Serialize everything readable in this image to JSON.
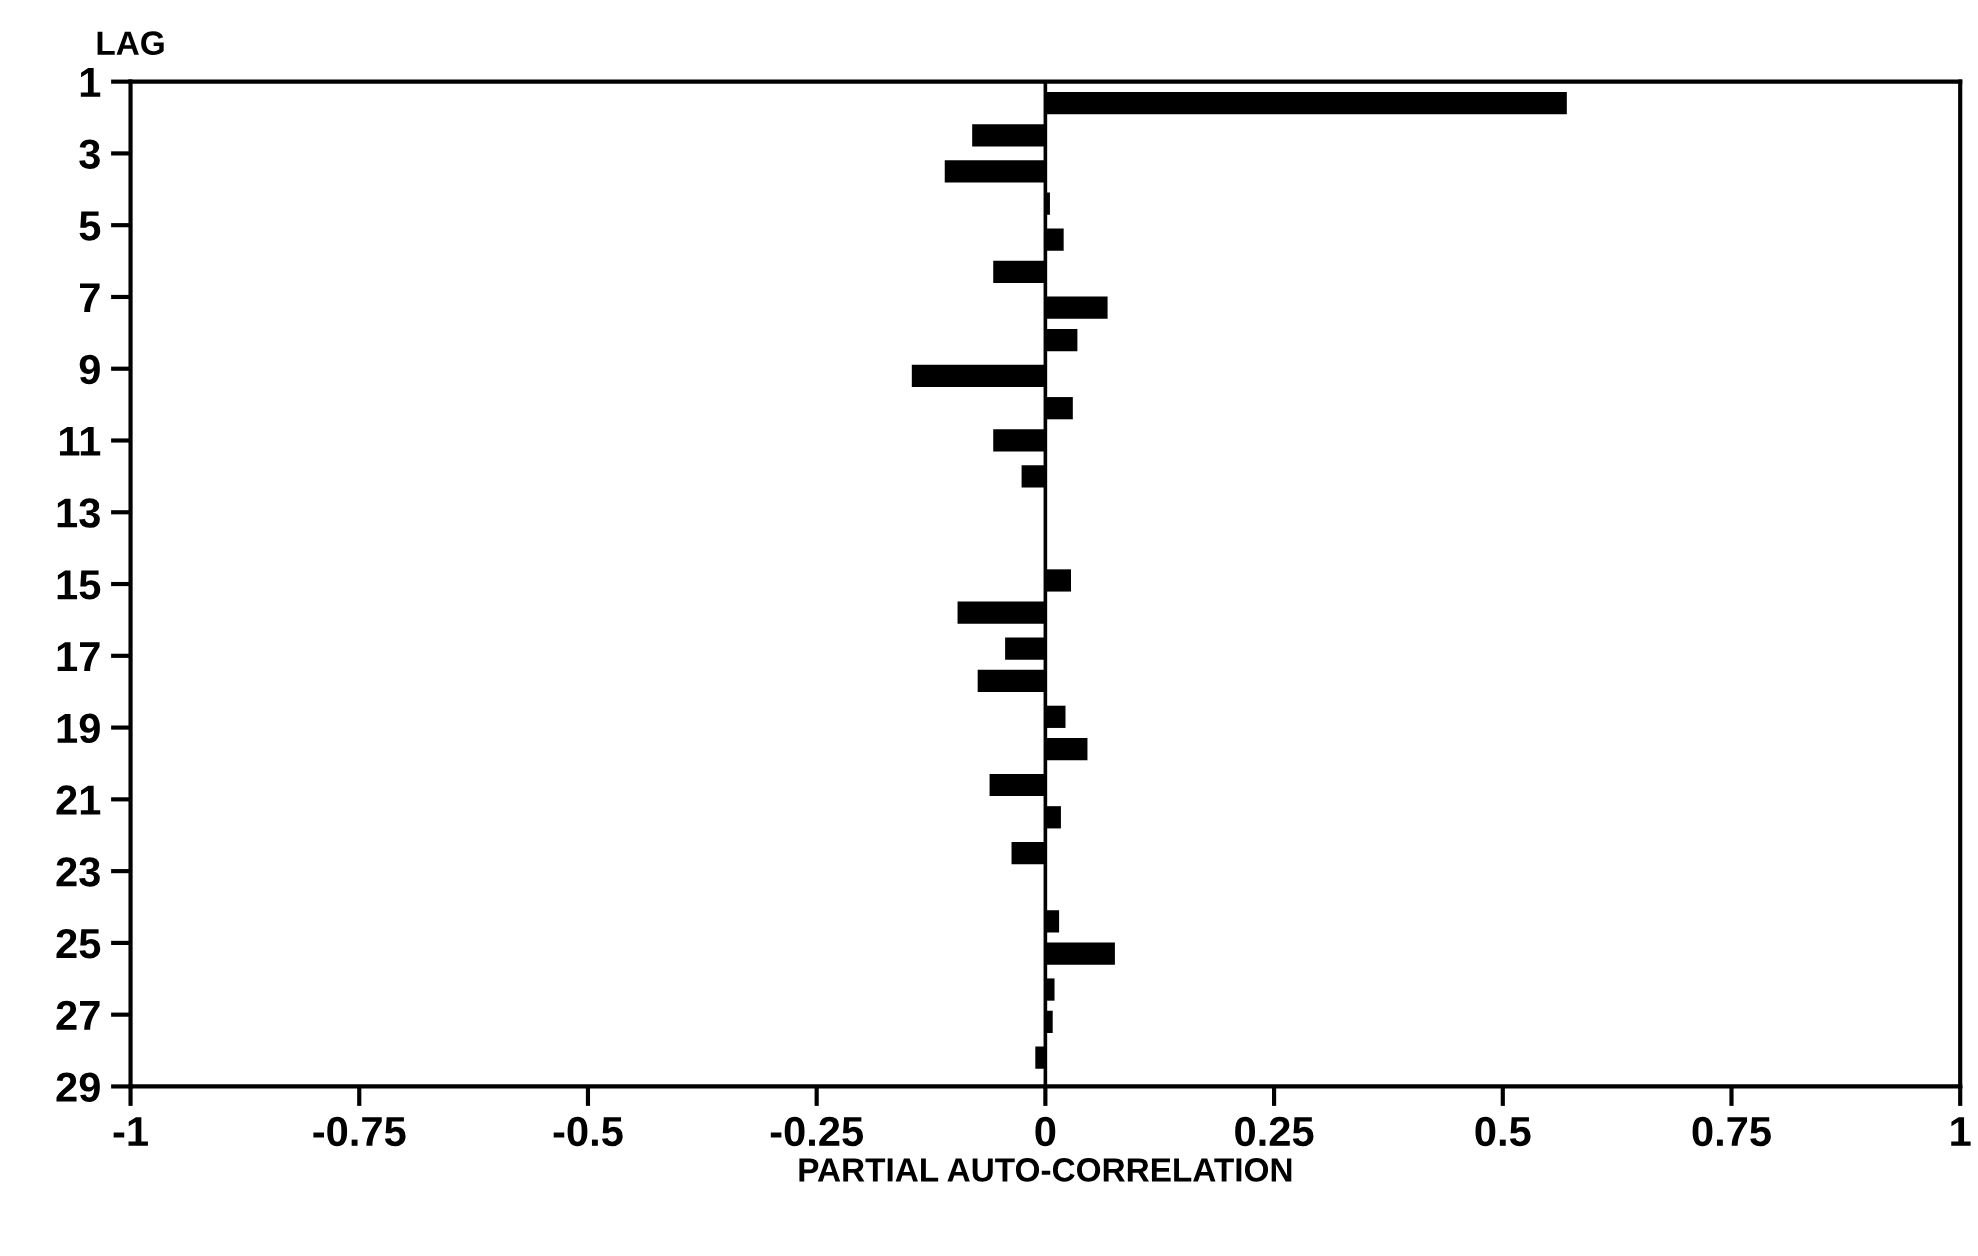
{
  "chart_data": {
    "type": "bar",
    "orientation": "horizontal",
    "xlabel": "PARTIAL AUTO-CORRELATION",
    "ylabel": "LAG",
    "x": [
      1.6,
      2.5,
      3.5,
      4.4,
      5.4,
      6.3,
      7.3,
      8.2,
      9.2,
      10.1,
      11.0,
      12.0,
      12.9,
      13.9,
      14.9,
      15.8,
      16.8,
      17.7,
      18.7,
      19.6,
      20.6,
      21.5,
      22.5,
      23.4,
      24.4,
      25.3,
      26.3,
      27.2,
      28.2
    ],
    "values": [
      0.57,
      -0.08,
      -0.11,
      0.005,
      0.02,
      -0.057,
      0.068,
      0.035,
      -0.146,
      0.03,
      -0.057,
      -0.026,
      0,
      0,
      0.028,
      -0.096,
      -0.044,
      -0.074,
      0.022,
      0.046,
      -0.061,
      0.017,
      -0.037,
      0,
      0.015,
      0.076,
      0.01,
      0.008,
      -0.011
    ],
    "color": "#000000",
    "xlim": [
      -1,
      1
    ],
    "xticks": [
      -1,
      -0.75,
      -0.5,
      -0.25,
      0,
      0.25,
      0.5,
      0.75,
      1
    ],
    "ylim": [
      29,
      1
    ],
    "yticks": [
      1,
      3,
      5,
      7,
      9,
      11,
      13,
      15,
      17,
      19,
      21,
      23,
      25,
      27,
      29
    ],
    "ref_lines": [
      {
        "axis": "x",
        "value": 0,
        "color": "#000000"
      }
    ],
    "grid": false,
    "legend": false
  }
}
